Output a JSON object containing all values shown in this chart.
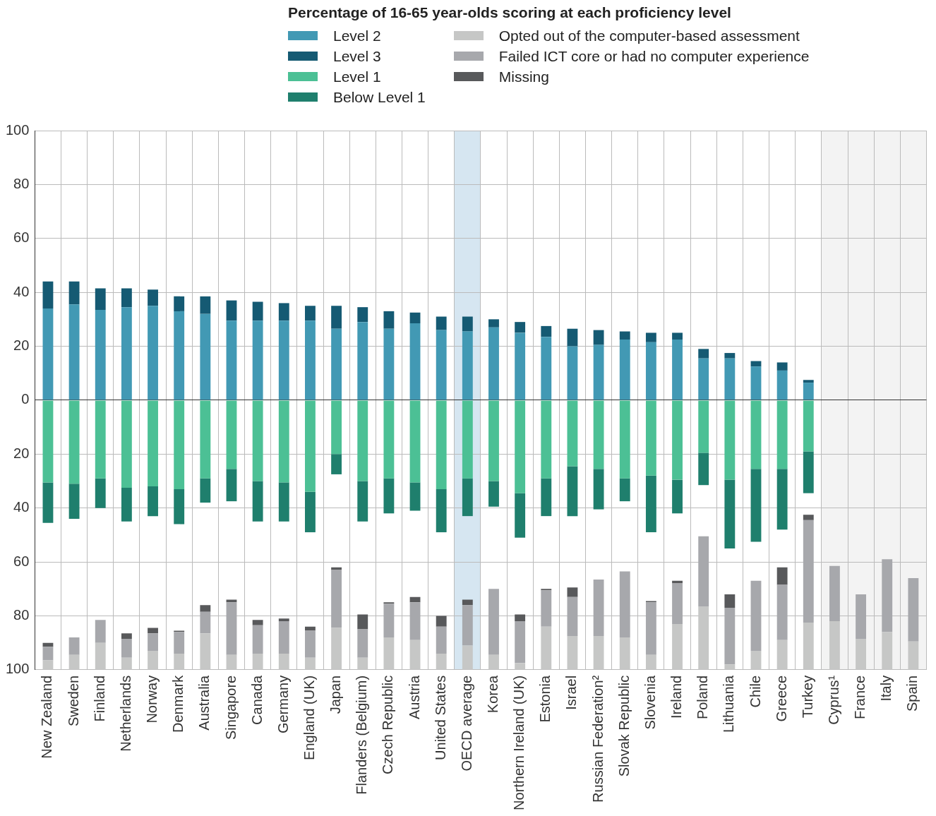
{
  "chart_data": {
    "type": "bar",
    "legend_title": "Percentage of 16-65 year-olds scoring at each proficiency level",
    "legend": "top",
    "grid": true,
    "categories": [
      "New Zealand",
      "Sweden",
      "Finland",
      "Netherlands",
      "Norway",
      "Denmark",
      "Australia",
      "Singapore",
      "Canada",
      "Germany",
      "England (UK)",
      "Japan",
      "Flanders (Belgium)",
      "Czech Republic",
      "Austria",
      "United States",
      "OECD average",
      "Korea",
      "Northern Ireland (UK)",
      "Estonia",
      "Israel",
      "Russian Federation²",
      "Slovak Republic",
      "Slovenia",
      "Ireland",
      "Poland",
      "Lithuania",
      "Chile",
      "Greece",
      "Turkey",
      "Cyprus¹",
      "France",
      "Italy",
      "Spain"
    ],
    "ylim": [
      -100,
      100
    ],
    "yticks": [
      {
        "value": -100,
        "label": "100"
      },
      {
        "value": -80,
        "label": "80"
      },
      {
        "value": -60,
        "label": "60"
      },
      {
        "value": -40,
        "label": "40"
      },
      {
        "value": -20,
        "label": "20"
      },
      0,
      20,
      40,
      60,
      80,
      100
    ],
    "bands": [
      {
        "axis": "x",
        "from": "OECD average",
        "to": "OECD average",
        "color": "#d6e6f1"
      },
      {
        "axis": "x",
        "from": "Cyprus¹",
        "to": "Spain",
        "color": "#f3f3f3"
      }
    ],
    "series": [
      {
        "name": "Level 2",
        "color": "#4299b4",
        "values": [
          34,
          35.5,
          33.5,
          34.5,
          35,
          33,
          32,
          29.5,
          29.5,
          29.5,
          29.5,
          26.5,
          29,
          26.5,
          28.5,
          26,
          25.5,
          27,
          25,
          23.5,
          20,
          20.5,
          22.5,
          21.5,
          22.5,
          15.5,
          15.5,
          12.5,
          11,
          6.5,
          null,
          null,
          null,
          null
        ],
        "base": [
          0,
          0,
          0,
          0,
          0,
          0,
          0,
          0,
          0,
          0,
          0,
          0,
          0,
          0,
          0,
          0,
          0,
          0,
          0,
          0,
          0,
          0,
          0,
          0,
          0,
          0,
          0,
          0,
          0,
          0,
          null,
          null,
          null,
          null
        ]
      },
      {
        "name": "Level 3",
        "color": "#155a73",
        "values": [
          10,
          8.5,
          8,
          7,
          6,
          5.5,
          6.5,
          7.5,
          7,
          6.5,
          5.5,
          8.5,
          5.5,
          6.5,
          4,
          5,
          5.5,
          3,
          4,
          4,
          6.5,
          5.5,
          3,
          3.5,
          2.5,
          3.5,
          2,
          2,
          3,
          1,
          null,
          null,
          null,
          null
        ],
        "base": [
          34,
          35.5,
          33.5,
          34.5,
          35,
          33,
          32,
          29.5,
          29.5,
          29.5,
          29.5,
          26.5,
          29,
          26.5,
          28.5,
          26,
          25.5,
          27,
          25,
          23.5,
          20,
          20.5,
          22.5,
          21.5,
          22.5,
          15.5,
          15.5,
          12.5,
          11,
          6.5,
          null,
          null,
          null,
          null
        ]
      },
      {
        "name": "Level 1",
        "color": "#4cc095",
        "values": [
          -30.5,
          -31,
          -29,
          -32.5,
          -32,
          -33,
          -29,
          -25.5,
          -30,
          -30.5,
          -34,
          -20,
          -30,
          -29,
          -30.5,
          -33,
          -29,
          -30,
          -34.5,
          -29,
          -24.5,
          -25.5,
          -29,
          -28,
          -29.5,
          -19.5,
          -29.5,
          -25.5,
          -25.5,
          -19,
          null,
          null,
          null,
          null
        ],
        "base": [
          0,
          0,
          0,
          0,
          0,
          0,
          0,
          0,
          0,
          0,
          0,
          0,
          0,
          0,
          0,
          0,
          0,
          0,
          0,
          0,
          0,
          0,
          0,
          0,
          0,
          0,
          0,
          0,
          0,
          0,
          null,
          null,
          null,
          null
        ]
      },
      {
        "name": "Below Level 1",
        "color": "#1f7f6d",
        "values": [
          -15,
          -13,
          -11,
          -12.5,
          -11,
          -13,
          -9,
          -12,
          -15,
          -14.5,
          -15,
          -7.5,
          -15,
          -13,
          -10.5,
          -16,
          -14,
          -9.5,
          -16.5,
          -14,
          -18.5,
          -15,
          -8.5,
          -21,
          -12.5,
          -12,
          -25.5,
          -27,
          -22.5,
          -15.5,
          null,
          null,
          null,
          null
        ],
        "base": [
          -30.5,
          -31,
          -29,
          -32.5,
          -32,
          -33,
          -29,
          -25.5,
          -30,
          -30.5,
          -34,
          -20,
          -30,
          -29,
          -30.5,
          -33,
          -29,
          -30,
          -34.5,
          -29,
          -24.5,
          -25.5,
          -29,
          -28,
          -29.5,
          -19.5,
          -29.5,
          -25.5,
          -25.5,
          -19,
          null,
          null,
          null,
          null
        ]
      },
      {
        "name": "Opted out of the computer-based assessment",
        "color": "#c6c7c6",
        "values": [
          3.5,
          5.5,
          10,
          4.5,
          7,
          6,
          13.5,
          5.5,
          6,
          6,
          4.5,
          15.5,
          4.5,
          12,
          11,
          6,
          9,
          5.5,
          2.5,
          16,
          12.5,
          12.5,
          12,
          5.5,
          17,
          23.5,
          2,
          7,
          11,
          17.5,
          18,
          11.5,
          14,
          10.5
        ],
        "base": [
          -100,
          -100,
          -100,
          -100,
          -100,
          -100,
          -100,
          -100,
          -100,
          -100,
          -100,
          -100,
          -100,
          -100,
          -100,
          -100,
          -100,
          -100,
          -100,
          -100,
          -100,
          -100,
          -100,
          -100,
          -100,
          -100,
          -100,
          -100,
          -100,
          -100,
          -100,
          -100,
          -100,
          -100
        ]
      },
      {
        "name": "Failed ICT core or had no computer experience",
        "color": "#a7a8ac",
        "values": [
          5,
          6.5,
          8.5,
          7,
          6.5,
          8,
          8,
          19.5,
          10.5,
          12,
          10,
          21.5,
          10.5,
          12.5,
          14,
          10,
          15,
          24.5,
          15.5,
          13.5,
          14.5,
          21,
          24.5,
          19.5,
          15,
          26,
          21,
          26,
          20.5,
          38,
          20.5,
          16.5,
          27,
          23.5
        ],
        "base": [
          -96.5,
          -94.5,
          -90,
          -95.5,
          -93,
          -94,
          -86.5,
          -94.5,
          -94,
          -94,
          -95.5,
          -84.5,
          -95.5,
          -88,
          -89,
          -94,
          -91,
          -94.5,
          -97.5,
          -84,
          -87.5,
          -87.5,
          -88,
          -94.5,
          -83,
          -76.5,
          -98,
          -93,
          -89,
          -82.5,
          -82,
          -88.5,
          -86,
          -89.5
        ]
      },
      {
        "name": "Missing",
        "color": "#58595b",
        "values": [
          1.5,
          null,
          null,
          2,
          2,
          0.5,
          2.5,
          1,
          2,
          1,
          1.5,
          1,
          5.5,
          0.5,
          2,
          4,
          2,
          null,
          2.5,
          0.5,
          3.5,
          null,
          null,
          0.5,
          1,
          null,
          5,
          null,
          6.5,
          2,
          null,
          null,
          null,
          null
        ],
        "base": [
          -91.5,
          null,
          null,
          -88.5,
          -86.5,
          -86,
          -78.5,
          -75,
          -83.5,
          -82,
          -85.5,
          -63,
          -85,
          -75.5,
          -75,
          -84,
          -76,
          null,
          -82,
          -70.5,
          -73,
          null,
          null,
          -75,
          -68,
          null,
          -77,
          null,
          -68.5,
          -44.5,
          null,
          null,
          null,
          null
        ]
      }
    ]
  }
}
